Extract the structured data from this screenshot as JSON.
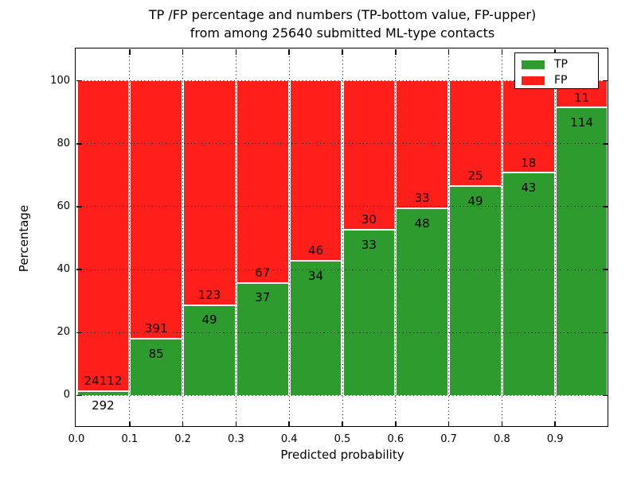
{
  "figure": {
    "title_line1": "TP /FP percentage and numbers (TP-bottom value, FP-upper)",
    "title_line2": "from among 25640 submitted ML-type contacts",
    "xlabel": "Predicted probability",
    "ylabel": "Percentage"
  },
  "chart_data": {
    "type": "bar",
    "stacked": true,
    "percent_normalized": true,
    "title": "TP /FP percentage and numbers (TP-bottom value, FP-upper) from among 25640 submitted ML-type contacts",
    "xlabel": "Predicted probability",
    "ylabel": "Percentage",
    "xlim": [
      0.0,
      1.0
    ],
    "ylim": [
      -10,
      110
    ],
    "bin_width": 0.1,
    "x_tick_labels": [
      "0.0",
      "0.1",
      "0.2",
      "0.3",
      "0.4",
      "0.5",
      "0.6",
      "0.7",
      "0.8",
      "0.9"
    ],
    "y_tick_values": [
      0,
      20,
      40,
      60,
      80,
      100
    ],
    "y_tick_labels": [
      "0",
      "20",
      "40",
      "60",
      "80",
      "100"
    ],
    "grid": "dotted",
    "legend_position": "upper right",
    "categories": [
      "0.0-0.1",
      "0.1-0.2",
      "0.2-0.3",
      "0.3-0.4",
      "0.4-0.5",
      "0.5-0.6",
      "0.6-0.7",
      "0.7-0.8",
      "0.8-0.9",
      "0.9-1.0"
    ],
    "series": [
      {
        "name": "TP",
        "color": "#2e9b2e",
        "counts": [
          292,
          85,
          49,
          37,
          34,
          33,
          48,
          49,
          43,
          114
        ]
      },
      {
        "name": "FP",
        "color": "#ff1f1a",
        "counts": [
          24112,
          391,
          123,
          67,
          46,
          30,
          33,
          25,
          18,
          11
        ]
      }
    ],
    "tp_percent": [
      1.2,
      17.9,
      28.5,
      35.6,
      42.5,
      52.4,
      59.3,
      66.2,
      70.5,
      91.2
    ],
    "legend": [
      {
        "label": "TP",
        "color": "#2e9b2e"
      },
      {
        "label": "FP",
        "color": "#ff1f1a"
      }
    ]
  }
}
